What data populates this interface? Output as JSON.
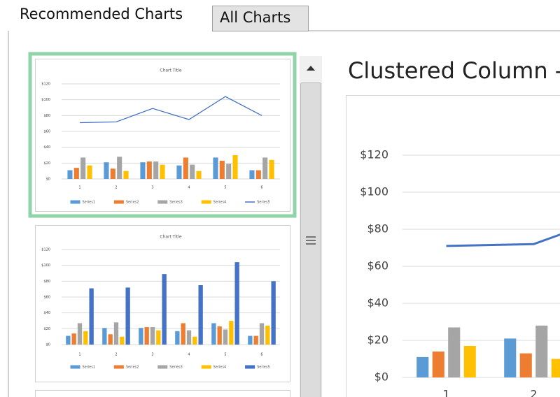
{
  "tabs": [
    "Recommended Charts",
    "All Charts"
  ],
  "preview_title": "Clustered Column -",
  "chart_data": {
    "type": "combo",
    "title": "Chart Title",
    "categories": [
      "1",
      "2",
      "3",
      "4",
      "5",
      "6"
    ],
    "series": [
      {
        "name": "Series1",
        "color": "#5b9bd5",
        "type": "bar",
        "values": [
          11,
          21,
          21,
          17,
          27,
          11
        ]
      },
      {
        "name": "Series2",
        "color": "#ed7d31",
        "type": "bar",
        "values": [
          14,
          13,
          22,
          27,
          23,
          11
        ]
      },
      {
        "name": "Series3",
        "color": "#a5a5a5",
        "type": "bar",
        "values": [
          27,
          28,
          22,
          18,
          19,
          27
        ]
      },
      {
        "name": "Series4",
        "color": "#ffc000",
        "type": "bar",
        "values": [
          17,
          10,
          18,
          10,
          30,
          24
        ]
      },
      {
        "name": "Series5",
        "color": "#4472c4",
        "type": "line",
        "values": [
          71,
          72,
          89,
          75,
          104,
          80
        ]
      }
    ],
    "ylim": [
      0,
      120
    ],
    "yticks": [
      {
        "value": 0,
        "label": "$0"
      },
      {
        "value": 20,
        "label": "$20"
      },
      {
        "value": 40,
        "label": "$40"
      },
      {
        "value": 60,
        "label": "$60"
      },
      {
        "value": 80,
        "label": "$80"
      },
      {
        "value": 100,
        "label": "$100"
      },
      {
        "value": 120,
        "label": "$120"
      }
    ],
    "grid": true
  }
}
